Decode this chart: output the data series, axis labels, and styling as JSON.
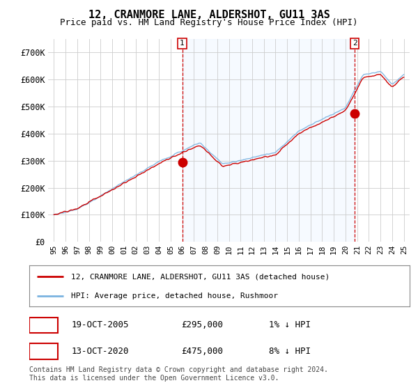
{
  "title": "12, CRANMORE LANE, ALDERSHOT, GU11 3AS",
  "subtitle": "Price paid vs. HM Land Registry's House Price Index (HPI)",
  "ylim": [
    0,
    750000
  ],
  "yticks": [
    0,
    100000,
    200000,
    300000,
    400000,
    500000,
    600000,
    700000
  ],
  "ytick_labels": [
    "£0",
    "£100K",
    "£200K",
    "£300K",
    "£400K",
    "£500K",
    "£600K",
    "£700K"
  ],
  "hpi_color": "#7ab3e0",
  "price_color": "#cc0000",
  "marker_color": "#cc0000",
  "vline_color": "#cc0000",
  "grid_color": "#cccccc",
  "shade_color": "#ddeeff",
  "bg_color": "#ffffff",
  "legend_label_price": "12, CRANMORE LANE, ALDERSHOT, GU11 3AS (detached house)",
  "legend_label_hpi": "HPI: Average price, detached house, Rushmoor",
  "annotation1_label": "1",
  "annotation1_date": "19-OCT-2005",
  "annotation1_price": "£295,000",
  "annotation1_hpi": "1% ↓ HPI",
  "annotation1_year": 2006.0,
  "annotation1_value": 295000,
  "annotation2_label": "2",
  "annotation2_date": "13-OCT-2020",
  "annotation2_price": "£475,000",
  "annotation2_hpi": "8% ↓ HPI",
  "annotation2_year": 2020.8,
  "annotation2_value": 475000,
  "footer": "Contains HM Land Registry data © Crown copyright and database right 2024.\nThis data is licensed under the Open Government Licence v3.0.",
  "xmin": 1994.5,
  "xmax": 2025.5
}
